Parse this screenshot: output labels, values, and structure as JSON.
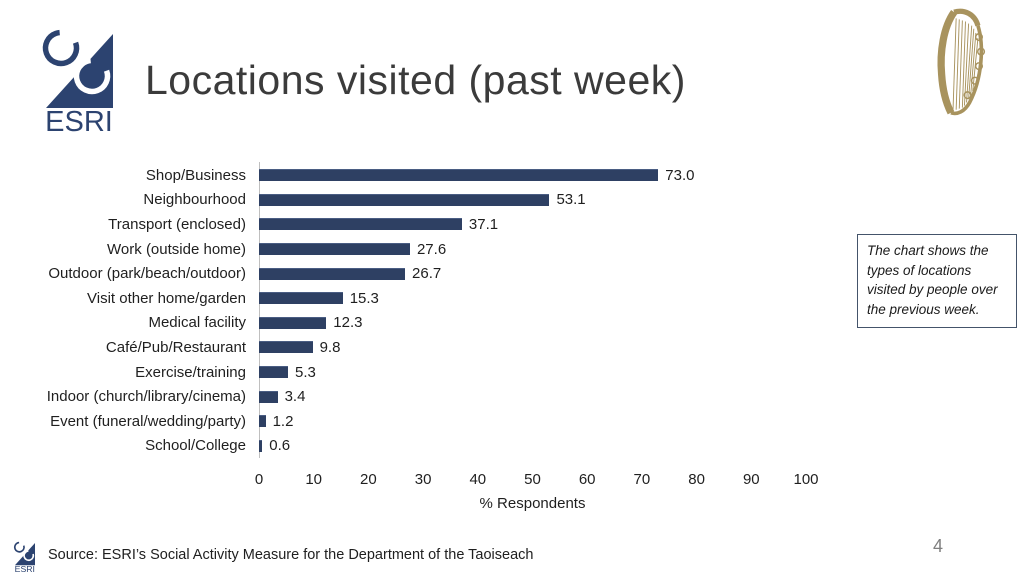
{
  "header": {
    "title": "Locations visited (past week)",
    "logo_text": "ESRI"
  },
  "chart_data": {
    "type": "bar",
    "orientation": "horizontal",
    "title": "",
    "categories": [
      "Shop/Business",
      "Neighbourhood",
      "Transport (enclosed)",
      "Work (outside home)",
      "Outdoor (park/beach/outdoor)",
      "Visit other home/garden",
      "Medical facility",
      "Café/Pub/Restaurant",
      "Exercise/training",
      "Indoor (church/library/cinema)",
      "Event (funeral/wedding/party)",
      "School/College"
    ],
    "values": [
      73.0,
      53.1,
      37.1,
      27.6,
      26.7,
      15.3,
      12.3,
      9.8,
      5.3,
      3.4,
      1.2,
      0.6
    ],
    "value_labels": [
      "73.0",
      "53.1",
      "37.1",
      "27.6",
      "26.7",
      "15.3",
      "12.3",
      "9.8",
      "5.3",
      "3.4",
      "1.2",
      "0.6"
    ],
    "xlabel": "% Respondents",
    "ylabel": "",
    "xlim": [
      0,
      100
    ],
    "xticks": [
      0,
      10,
      20,
      30,
      40,
      50,
      60,
      70,
      80,
      90,
      100
    ],
    "grid": "off",
    "legend": "none",
    "bar_color": "#2e4063",
    "axis_line_color": "#bfbfbf"
  },
  "note_box": {
    "text": "The chart shows the types of locations visited by people over the previous week."
  },
  "footer": {
    "source": "Source: ESRI’s Social Activity Measure for the Department of the Taoiseach",
    "page_number": "4",
    "logo_text": "ESRI"
  },
  "colors": {
    "bar_navy": "#2e4063",
    "logo_navy": "#2c4370",
    "harp_gold": "#a8935e",
    "title_gray": "#3b3b3b",
    "note_border": "#44546a"
  }
}
